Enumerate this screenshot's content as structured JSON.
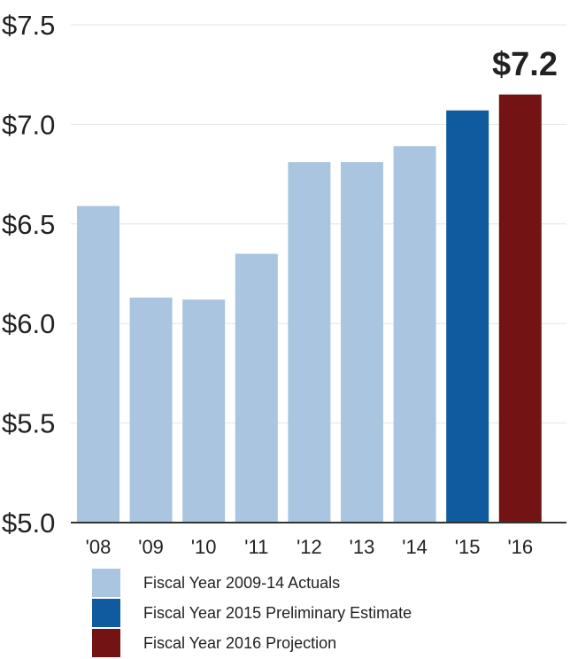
{
  "chart_data": {
    "type": "bar",
    "categories": [
      "'08",
      "'09",
      "'10",
      "'11",
      "'12",
      "'13",
      "'14",
      "'15",
      "'16"
    ],
    "values": [
      6.59,
      6.13,
      6.12,
      6.35,
      6.81,
      6.81,
      6.89,
      7.07,
      7.15
    ],
    "series_group": [
      0,
      0,
      0,
      0,
      0,
      0,
      0,
      1,
      2
    ],
    "yticks": [
      "$5.0",
      "$5.5",
      "$6.0",
      "$6.5",
      "$7.0",
      "$7.5"
    ],
    "ytick_values": [
      5.0,
      5.5,
      6.0,
      6.5,
      7.0,
      7.5
    ],
    "ylim": [
      5.0,
      7.5
    ],
    "grid": true,
    "callout": "$7.2",
    "colors": [
      "#a9c5df",
      "#105aa0",
      "#741313"
    ],
    "legend_placement": "bottom",
    "legend": [
      {
        "label": "Fiscal Year 2009-14 Actuals",
        "color": "#a9c5df"
      },
      {
        "label": "Fiscal Year 2015 Preliminary Estimate",
        "color": "#105aa0"
      },
      {
        "label": "Fiscal Year 2016 Projection",
        "color": "#741313"
      }
    ]
  }
}
